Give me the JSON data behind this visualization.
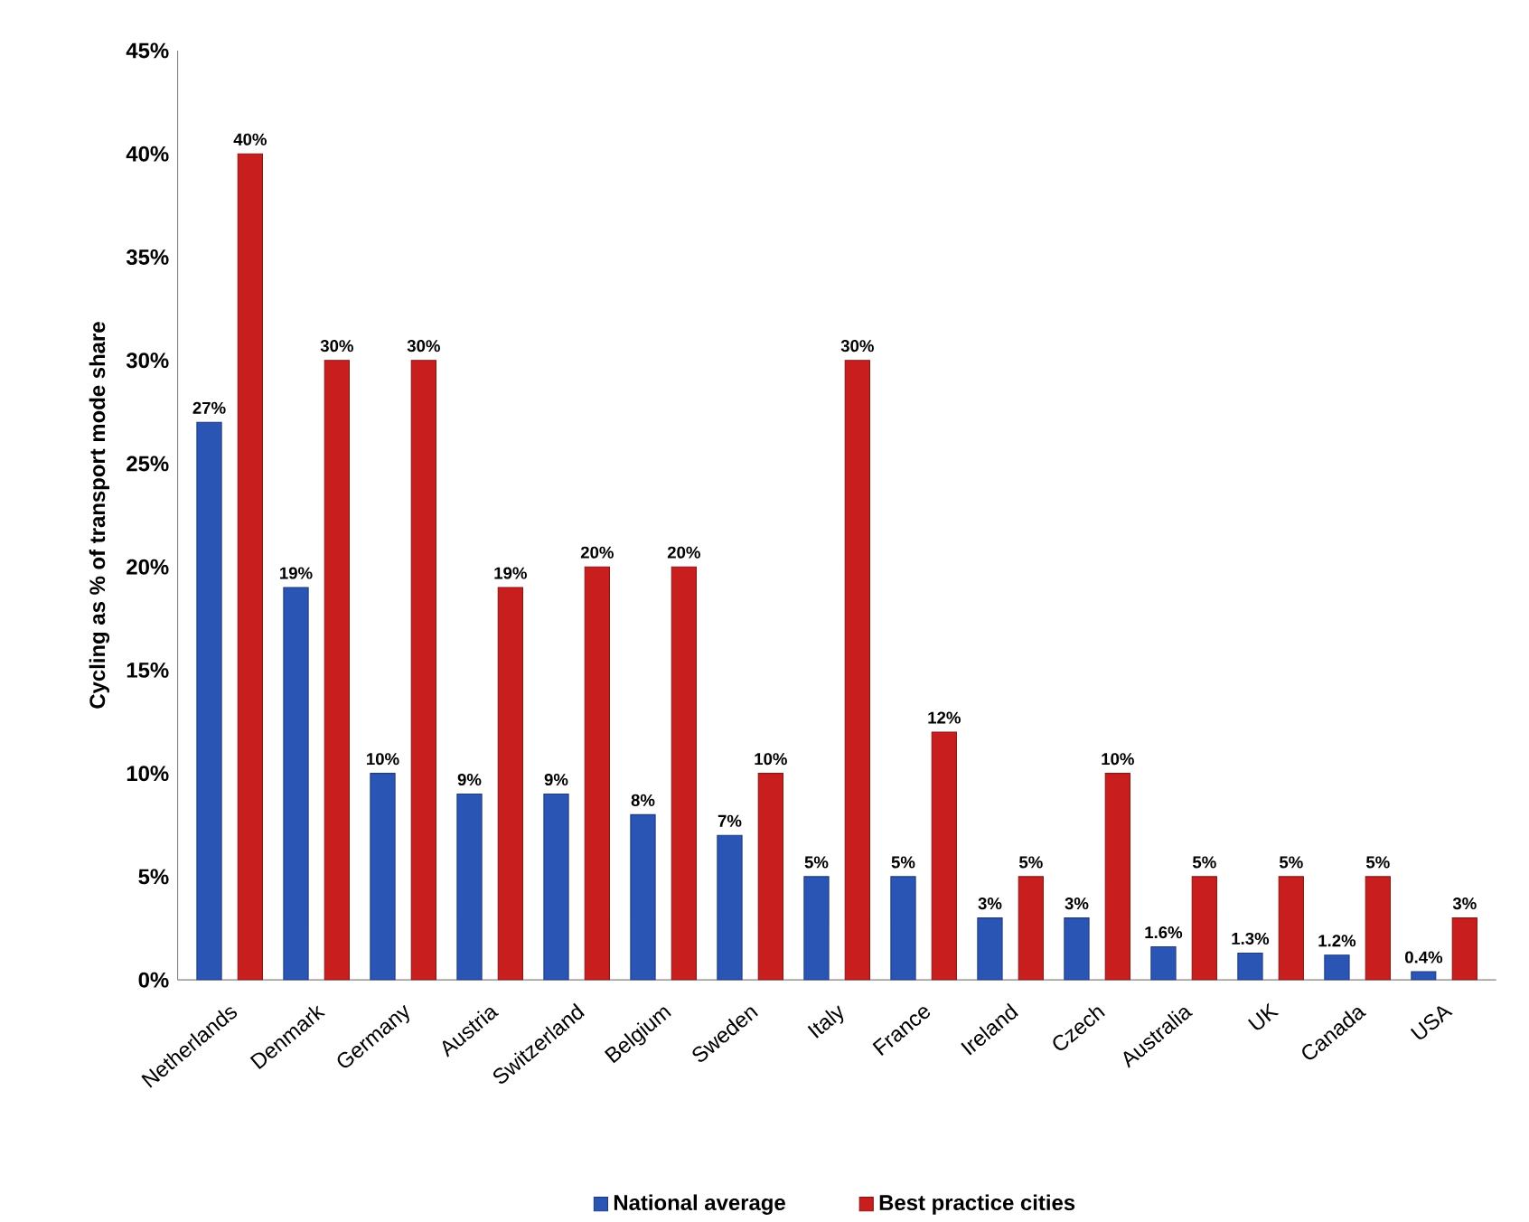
{
  "chart_data": {
    "type": "bar",
    "ylabel": "Cycling as % of transport mode share",
    "categories": [
      "Netherlands",
      "Denmark",
      "Germany",
      "Austria",
      "Switzerland",
      "Belgium",
      "Sweden",
      "Italy",
      "France",
      "Ireland",
      "Czech",
      "Australia",
      "UK",
      "Canada",
      "USA"
    ],
    "series": [
      {
        "name": "National average",
        "color": "#2a55b5",
        "values": [
          27,
          19,
          10,
          9,
          9,
          8,
          7,
          5,
          5,
          3,
          3,
          1.6,
          1.3,
          1.2,
          0.4
        ],
        "value_labels": [
          "27%",
          "19%",
          "10%",
          "9%",
          "9%",
          "8%",
          "7%",
          "5%",
          "5%",
          "3%",
          "3%",
          "1.6%",
          "1.3%",
          "1.2%",
          "0.4%"
        ]
      },
      {
        "name": "Best practice cities",
        "color": "#c81e1e",
        "values": [
          40,
          30,
          30,
          19,
          20,
          20,
          10,
          30,
          12,
          5,
          10,
          5,
          5,
          5,
          3
        ],
        "value_labels": [
          "40%",
          "30%",
          "30%",
          "19%",
          "20%",
          "20%",
          "10%",
          "30%",
          "12%",
          "5%",
          "10%",
          "5%",
          "5%",
          "5%",
          "3%"
        ]
      }
    ],
    "ylim": [
      0,
      45
    ],
    "yticks": [
      {
        "value": 0,
        "label": "0%"
      },
      {
        "value": 5,
        "label": "5%"
      },
      {
        "value": 10,
        "label": "10%"
      },
      {
        "value": 15,
        "label": "15%"
      },
      {
        "value": 20,
        "label": "20%"
      },
      {
        "value": 25,
        "label": "25%"
      },
      {
        "value": 30,
        "label": "30%"
      },
      {
        "value": 35,
        "label": "35%"
      },
      {
        "value": 40,
        "label": "40%"
      },
      {
        "value": 45,
        "label": "45%"
      }
    ],
    "legend": "bottom"
  }
}
